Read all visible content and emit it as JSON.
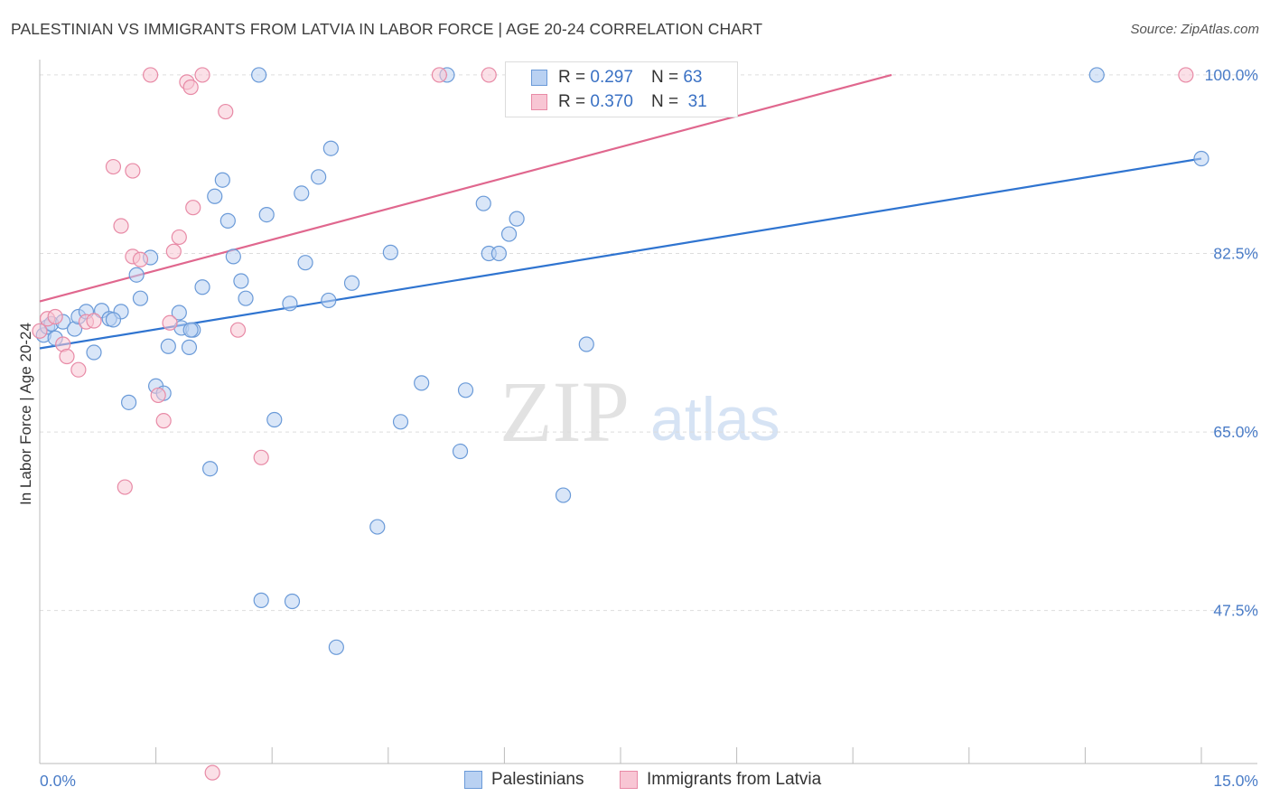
{
  "title": "PALESTINIAN VS IMMIGRANTS FROM LATVIA IN LABOR FORCE | AGE 20-24 CORRELATION CHART",
  "source": "Source: ZipAtlas.com",
  "watermark": {
    "zip": "ZIP",
    "atlas": "atlas"
  },
  "legend": {
    "rows": [
      {
        "r_label": "R =",
        "r_value": "0.297",
        "n_label": "N =",
        "n_value": "63"
      },
      {
        "r_label": "R =",
        "r_value": "0.370",
        "n_label": "N =",
        "n_value": "31"
      }
    ]
  },
  "colors": {
    "blue_fill": "#b9d1f2",
    "blue_stroke": "#6a9ad8",
    "blue_line": "#2f74d0",
    "pink_fill": "#f8c6d4",
    "pink_stroke": "#e88aa6",
    "pink_line": "#e0678e",
    "tick_text": "#4a7cc7"
  },
  "chart_data": {
    "type": "scatter",
    "title": "PALESTINIAN VS IMMIGRANTS FROM LATVIA IN LABOR FORCE | AGE 20-24 CORRELATION CHART",
    "xlabel": "",
    "ylabel": "In Labor Force | Age 20-24",
    "xlim": [
      0,
      15
    ],
    "ylim": [
      32.5,
      101.5
    ],
    "x_tick_labels": [
      "0.0%",
      "15.0%"
    ],
    "y_ticks": [
      47.5,
      65.0,
      82.5,
      100.0
    ],
    "y_tick_labels": [
      "47.5%",
      "65.0%",
      "82.5%",
      "100.0%"
    ],
    "grid": true,
    "legend_placement": "top-center",
    "series": [
      {
        "name": "Palestinians",
        "color": "#6a9ad8",
        "trend": {
          "x": [
            0,
            15
          ],
          "y": [
            73.2,
            91.8
          ]
        },
        "points": [
          [
            0.05,
            74.5
          ],
          [
            0.1,
            75.3
          ],
          [
            0.15,
            75.6
          ],
          [
            0.2,
            74.2
          ],
          [
            0.3,
            75.8
          ],
          [
            0.45,
            75.1
          ],
          [
            0.5,
            76.3
          ],
          [
            0.6,
            76.8
          ],
          [
            0.7,
            72.8
          ],
          [
            0.8,
            76.9
          ],
          [
            0.9,
            76.1
          ],
          [
            1.05,
            76.8
          ],
          [
            1.15,
            67.9
          ],
          [
            1.25,
            80.4
          ],
          [
            1.3,
            78.1
          ],
          [
            1.43,
            82.1
          ],
          [
            1.5,
            69.5
          ],
          [
            1.6,
            68.8
          ],
          [
            1.66,
            73.4
          ],
          [
            1.8,
            76.7
          ],
          [
            1.83,
            75.2
          ],
          [
            1.93,
            73.3
          ],
          [
            1.98,
            75.0
          ],
          [
            2.1,
            79.2
          ],
          [
            2.2,
            61.4
          ],
          [
            2.26,
            88.1
          ],
          [
            2.36,
            89.7
          ],
          [
            2.43,
            85.7
          ],
          [
            2.5,
            82.2
          ],
          [
            2.6,
            79.8
          ],
          [
            2.66,
            78.1
          ],
          [
            2.83,
            100.0
          ],
          [
            2.86,
            48.5
          ],
          [
            2.93,
            86.3
          ],
          [
            3.03,
            66.2
          ],
          [
            3.23,
            77.6
          ],
          [
            3.26,
            48.4
          ],
          [
            3.38,
            88.4
          ],
          [
            3.43,
            81.6
          ],
          [
            3.6,
            90.0
          ],
          [
            3.73,
            77.9
          ],
          [
            3.76,
            92.8
          ],
          [
            3.83,
            43.9
          ],
          [
            4.03,
            79.6
          ],
          [
            4.36,
            55.7
          ],
          [
            4.53,
            82.6
          ],
          [
            4.66,
            66.0
          ],
          [
            4.93,
            69.8
          ],
          [
            5.26,
            100.0
          ],
          [
            5.43,
            63.1
          ],
          [
            5.5,
            69.1
          ],
          [
            5.73,
            87.4
          ],
          [
            5.8,
            82.5
          ],
          [
            5.93,
            82.5
          ],
          [
            6.06,
            84.4
          ],
          [
            6.16,
            85.9
          ],
          [
            6.76,
            58.8
          ],
          [
            7.06,
            73.6
          ],
          [
            7.76,
            100.0
          ],
          [
            13.65,
            100.0
          ],
          [
            15.0,
            91.8
          ],
          [
            0.95,
            76.0
          ],
          [
            1.95,
            75.0
          ]
        ]
      },
      {
        "name": "Immigrants from Latvia",
        "color": "#e88aa6",
        "trend": {
          "x": [
            0,
            11
          ],
          "y": [
            77.8,
            100.0
          ]
        },
        "points": [
          [
            0.0,
            74.9
          ],
          [
            0.1,
            76.1
          ],
          [
            0.2,
            76.3
          ],
          [
            0.3,
            73.6
          ],
          [
            0.35,
            72.4
          ],
          [
            0.5,
            71.1
          ],
          [
            0.6,
            75.8
          ],
          [
            0.7,
            75.9
          ],
          [
            0.95,
            91.0
          ],
          [
            1.05,
            85.2
          ],
          [
            1.1,
            59.6
          ],
          [
            1.2,
            90.6
          ],
          [
            1.2,
            82.2
          ],
          [
            1.3,
            81.9
          ],
          [
            1.43,
            100.0
          ],
          [
            1.53,
            68.6
          ],
          [
            1.6,
            66.1
          ],
          [
            1.73,
            82.7
          ],
          [
            1.8,
            84.1
          ],
          [
            1.9,
            99.3
          ],
          [
            1.95,
            98.8
          ],
          [
            1.98,
            87.0
          ],
          [
            2.1,
            100.0
          ],
          [
            2.4,
            96.4
          ],
          [
            2.56,
            75.0
          ],
          [
            2.86,
            62.5
          ],
          [
            5.16,
            100.0
          ],
          [
            5.8,
            100.0
          ],
          [
            14.8,
            100.0
          ],
          [
            1.68,
            75.7
          ],
          [
            2.23,
            31.6
          ]
        ]
      }
    ]
  },
  "bottom_legend": [
    "Palestinians",
    "Immigrants from Latvia"
  ]
}
